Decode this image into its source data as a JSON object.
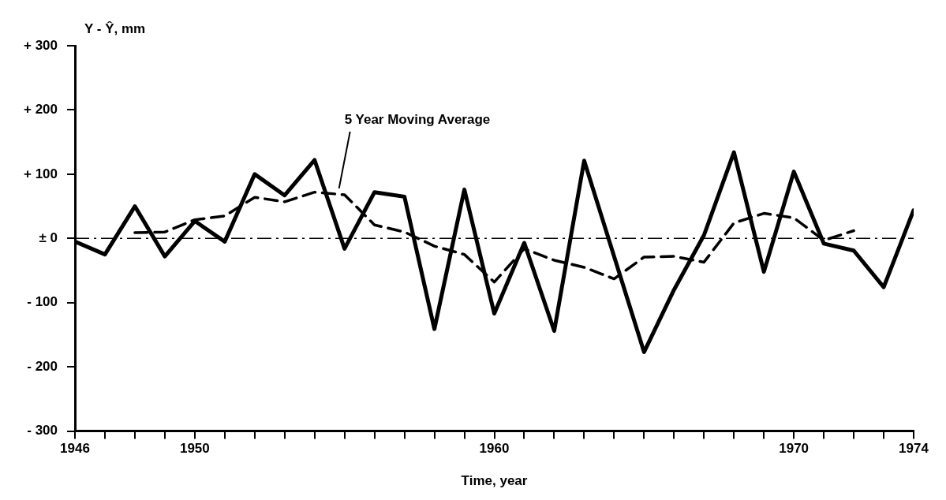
{
  "chart_data": {
    "type": "line",
    "xlabel": "Time, year",
    "ylabel": "Y - Ŷ, mm",
    "xlim": [
      1946,
      1974
    ],
    "ylim": [
      -300,
      300
    ],
    "xticks": [
      1946,
      {
        "value": 1947,
        "label": null
      },
      {
        "value": 1948,
        "label": null
      },
      {
        "value": 1949,
        "label": null
      },
      1950,
      {
        "value": 1951,
        "label": null
      },
      {
        "value": 1952,
        "label": null
      },
      {
        "value": 1953,
        "label": null
      },
      {
        "value": 1954,
        "label": null
      },
      {
        "value": 1955,
        "label": null
      },
      {
        "value": 1956,
        "label": null
      },
      {
        "value": 1957,
        "label": null
      },
      {
        "value": 1958,
        "label": null
      },
      {
        "value": 1959,
        "label": null
      },
      1960,
      {
        "value": 1961,
        "label": null
      },
      {
        "value": 1962,
        "label": null
      },
      {
        "value": 1963,
        "label": null
      },
      {
        "value": 1964,
        "label": null
      },
      {
        "value": 1965,
        "label": null
      },
      {
        "value": 1966,
        "label": null
      },
      {
        "value": 1967,
        "label": null
      },
      {
        "value": 1968,
        "label": null
      },
      {
        "value": 1969,
        "label": null
      },
      1970,
      {
        "value": 1971,
        "label": null
      },
      {
        "value": 1972,
        "label": null
      },
      {
        "value": 1973,
        "label": null
      },
      1974
    ],
    "yticks": [
      {
        "value": -300,
        "label": "- 300"
      },
      {
        "value": -200,
        "label": "- 200"
      },
      {
        "value": -100,
        "label": "- 100"
      },
      {
        "value": 0,
        "label": "± 0"
      },
      {
        "value": 100,
        "label": "+ 100"
      },
      {
        "value": 200,
        "label": "+ 200"
      },
      {
        "value": 300,
        "label": "+ 300"
      }
    ],
    "grid": false,
    "legend": false,
    "marker": "none",
    "ref_lines": [
      {
        "axis": "y",
        "value": 0,
        "color": "#000000",
        "line_style": "dashdot"
      }
    ],
    "series": [
      {
        "color": "#000000",
        "line_style": "solid",
        "x": [
          1946,
          1947,
          1948,
          1949,
          1950,
          1951,
          1952,
          1953,
          1954,
          1955,
          1956,
          1957,
          1958,
          1959,
          1960,
          1961,
          1962,
          1963,
          1965,
          1966,
          1967,
          1968,
          1969,
          1970,
          1971,
          1972,
          1973,
          1974
        ],
        "values": [
          -5,
          -25,
          50,
          -28,
          27,
          -5,
          100,
          67,
          122,
          -16,
          72,
          65,
          -141,
          76,
          -117,
          -7,
          -144,
          121,
          -177,
          -80,
          5,
          134,
          -52,
          104,
          -8,
          -19,
          -76,
          44
        ]
      },
      {
        "name": "5 Year Moving Average",
        "color": "#000000",
        "line_style": "dashed",
        "x": [
          1948,
          1949,
          1950,
          1951,
          1952,
          1953,
          1954,
          1955,
          1956,
          1957,
          1958,
          1959,
          1960,
          1961,
          1962,
          1963,
          1964,
          1965,
          1966,
          1967,
          1968,
          1969,
          1970,
          1971,
          1972
        ],
        "values": [
          9,
          10,
          29,
          35,
          64,
          57,
          72,
          68,
          21,
          10,
          -12,
          -25,
          -68,
          -16,
          -34,
          -45,
          -63,
          -29,
          -28,
          -37,
          24,
          39,
          32,
          -3,
          12
        ]
      }
    ]
  }
}
